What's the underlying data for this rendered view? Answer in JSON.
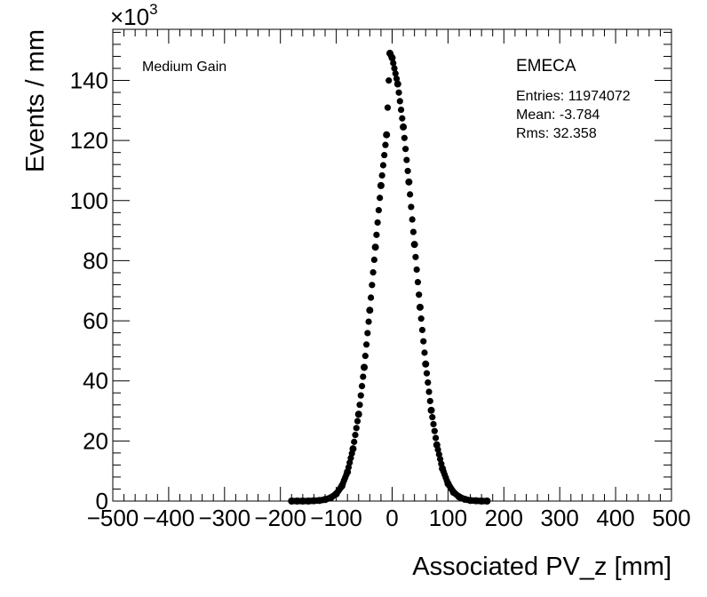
{
  "chart_data": {
    "type": "scatter",
    "title": "",
    "xlabel": "Associated PV_z [mm]",
    "ylabel": "Events / mm",
    "y_multiplier": "×10",
    "y_multiplier_exp": "3",
    "xlim": [
      -500,
      500
    ],
    "ylim": [
      0,
      157
    ],
    "x_ticks": [
      -500,
      -400,
      -300,
      -200,
      -100,
      0,
      100,
      200,
      300,
      400,
      500
    ],
    "x_tick_labels": [
      "−500",
      "−400",
      "−300",
      "−200",
      "−100",
      "0",
      "100",
      "200",
      "300",
      "400",
      "500"
    ],
    "y_ticks": [
      0,
      20,
      40,
      60,
      80,
      100,
      120,
      140
    ],
    "y_tick_labels": [
      "0",
      "20",
      "40",
      "60",
      "80",
      "100",
      "120",
      "140"
    ],
    "grid": false,
    "series": [
      {
        "name": "EMECA",
        "marker": "filled-circle",
        "color": "#000000",
        "x": [
          -180,
          -170,
          -160,
          -150,
          -140,
          -130,
          -120,
          -110,
          -100,
          -90,
          -80,
          -70,
          -60,
          -50,
          -40,
          -30,
          -20,
          -10,
          -4,
          0,
          10,
          20,
          30,
          40,
          50,
          60,
          70,
          80,
          90,
          100,
          110,
          120,
          130,
          140,
          150,
          160,
          170
        ],
        "y": [
          0.0,
          0.0,
          0.0,
          0.0,
          0.1,
          0.2,
          0.5,
          1.1,
          2.4,
          5.0,
          9.7,
          17.4,
          28.9,
          44.5,
          63.5,
          84.5,
          105.0,
          121.9,
          149.0,
          147.5,
          138.8,
          124.5,
          106.2,
          85.4,
          64.5,
          45.6,
          30.2,
          18.7,
          10.8,
          5.8,
          2.9,
          1.4,
          0.6,
          0.2,
          0.1,
          0.0,
          0.0
        ]
      }
    ],
    "annotations": {
      "left_label": "Medium Gain",
      "legend_title": "EMECA",
      "stats": [
        "Entries: 11974072",
        "Mean: -3.784",
        "Rms: 32.358"
      ]
    },
    "legend_placement": "top-right"
  }
}
